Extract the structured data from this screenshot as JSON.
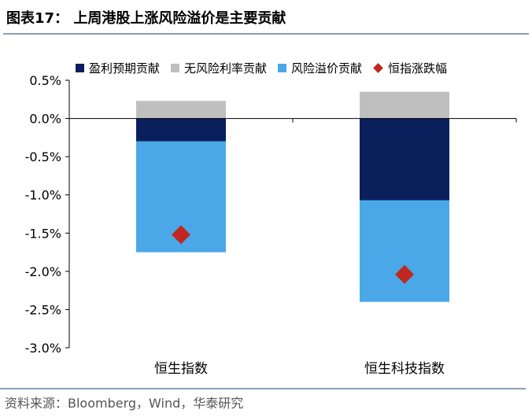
{
  "figure": {
    "title": "图表17：  上周港股上涨风险溢价是主要贡献",
    "source": "资料来源：Bloomberg，Wind，华泰研究"
  },
  "colors": {
    "earnings": "#0b1f5c",
    "riskfree": "#bfbfbf",
    "erp": "#4aa8e8",
    "index": "#c0281f",
    "rule": "#8aa0bd"
  },
  "chart_data": {
    "type": "bar",
    "stacked": true,
    "categories": [
      "恒生指数",
      "恒生科技指数"
    ],
    "series": [
      {
        "name": "盈利预期贡献",
        "values": [
          -0.3,
          -1.07
        ]
      },
      {
        "name": "无风险利率贡献",
        "values": [
          0.23,
          0.35
        ]
      },
      {
        "name": "风险溢价贡献",
        "values": [
          -1.45,
          -1.33
        ]
      }
    ],
    "markers": {
      "name": "恒指涨跌幅",
      "values": [
        -1.52,
        -2.04
      ]
    },
    "ylim": [
      -3.0,
      0.5
    ],
    "yticks": [
      0.5,
      0.0,
      -0.5,
      -1.0,
      -1.5,
      -2.0,
      -2.5,
      -3.0
    ],
    "ytick_labels": [
      "0.5%",
      "0.0%",
      "-0.5%",
      "-1.0%",
      "-1.5%",
      "-2.0%",
      "-2.5%",
      "-3.0%"
    ],
    "legend_position": "top",
    "grid": false
  }
}
